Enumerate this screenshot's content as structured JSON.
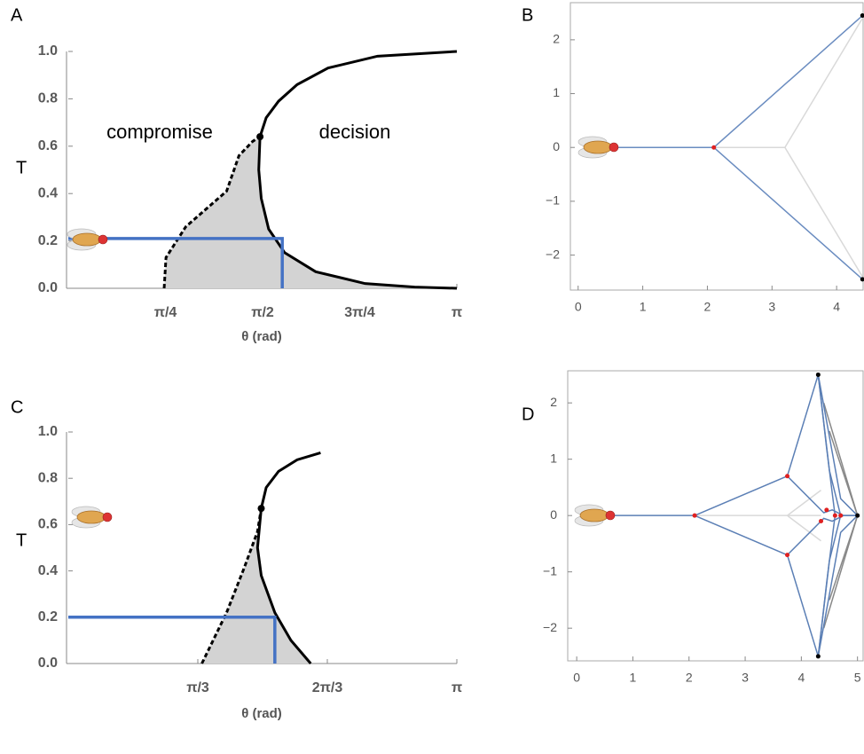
{
  "chart_data": [
    {
      "type": "line",
      "label": "A",
      "xlabel": "θ (rad)",
      "ylabel": "T",
      "annotations": [
        "compromise",
        "decision"
      ],
      "xlim": [
        0,
        3.1416
      ],
      "ylim": [
        0,
        1
      ],
      "frame": false,
      "shade_color": "#d3d3d3",
      "xticks": [
        {
          "value": 0.7854,
          "label": "π/4"
        },
        {
          "value": 1.5708,
          "label": "π/2"
        },
        {
          "value": 2.3562,
          "label": "3π/4"
        },
        {
          "value": 3.1416,
          "label": "π"
        }
      ],
      "yticks": [
        {
          "value": 0,
          "label": "0.0"
        },
        0.2,
        0.4,
        0.6,
        0.8,
        {
          "value": 1,
          "label": "1.0"
        }
      ],
      "series": [
        {
          "color": "#000000",
          "x": [
            1.55,
            1.6,
            1.7,
            1.85,
            2.1,
            2.5,
            3.1416
          ],
          "y": [
            0.64,
            0.72,
            0.79,
            0.86,
            0.93,
            0.98,
            1.0
          ]
        },
        {
          "color": "#000000",
          "x": [
            1.55,
            1.54,
            1.56,
            1.62,
            1.75,
            2.0,
            2.4,
            2.8,
            3.1416
          ],
          "y": [
            0.64,
            0.5,
            0.38,
            0.25,
            0.15,
            0.07,
            0.02,
            0.005,
            0
          ]
        },
        {
          "color": "#000000",
          "dash": true,
          "x": [
            0.775,
            0.79,
            0.95,
            1.28,
            1.38,
            1.49,
            1.55
          ],
          "y": [
            0,
            0.13,
            0.26,
            0.41,
            0.56,
            0.62,
            0.64
          ]
        },
        {
          "color": "#4472c4",
          "x": [
            0,
            1.73,
            1.73
          ],
          "y": [
            0.21,
            0.21,
            0
          ]
        }
      ],
      "points": [
        {
          "color": "#000000",
          "x": [
            1.55
          ],
          "y": [
            0.64
          ]
        }
      ]
    },
    {
      "type": "line",
      "label": "B",
      "xlim": [
        -0.12,
        4.41
      ],
      "ylim": [
        -2.65,
        2.69
      ],
      "frame": true,
      "xticks": [
        0,
        1,
        2,
        3,
        4
      ],
      "yticks": [
        {
          "value": -2,
          "label": "−2"
        },
        {
          "value": -1,
          "label": "−1"
        },
        0,
        1,
        2
      ],
      "series": [
        {
          "color": "#d9d9d9",
          "x": [
            2.1,
            3.2,
            4.4
          ],
          "y": [
            0,
            0,
            2.4
          ]
        },
        {
          "color": "#d9d9d9",
          "x": [
            3.2,
            4.4
          ],
          "y": [
            0,
            -2.4
          ]
        },
        {
          "color": "#6a8cc0",
          "x": [
            0.6,
            2.1,
            4.4
          ],
          "y": [
            0,
            0,
            2.45
          ]
        },
        {
          "color": "#6a8cc0",
          "x": [
            2.1,
            4.4
          ],
          "y": [
            0,
            -2.45
          ]
        }
      ],
      "points": [
        {
          "color": "#e02020",
          "x": [
            2.1
          ],
          "y": [
            0
          ]
        },
        {
          "color": "#000000",
          "x": [
            4.4,
            4.4
          ],
          "y": [
            2.45,
            -2.45
          ]
        }
      ]
    },
    {
      "type": "line",
      "label": "C",
      "xlabel": "θ (rad)",
      "ylabel": "T",
      "xlim": [
        0,
        3.1416
      ],
      "ylim": [
        0,
        1
      ],
      "frame": false,
      "shade_color": "#d3d3d3",
      "xticks": [
        {
          "value": 1.0472,
          "label": "π/3"
        },
        {
          "value": 2.0944,
          "label": "2π/3"
        },
        {
          "value": 3.1416,
          "label": "π"
        }
      ],
      "yticks": [
        {
          "value": 0,
          "label": "0.0"
        },
        0.2,
        0.4,
        0.6,
        0.8,
        {
          "value": 1,
          "label": "1.0"
        }
      ],
      "series": [
        {
          "color": "#000000",
          "x": [
            1.56,
            1.6,
            1.7,
            1.85,
            2.04
          ],
          "y": [
            0.67,
            0.76,
            0.83,
            0.88,
            0.91
          ]
        },
        {
          "color": "#000000",
          "x": [
            1.56,
            1.53,
            1.56,
            1.67,
            1.8,
            1.96
          ],
          "y": [
            0.67,
            0.5,
            0.38,
            0.22,
            0.1,
            0
          ]
        },
        {
          "color": "#000000",
          "dash": true,
          "x": [
            1.08,
            1.28,
            1.42,
            1.53,
            1.56
          ],
          "y": [
            0,
            0.22,
            0.41,
            0.57,
            0.67
          ]
        },
        {
          "color": "#4472c4",
          "x": [
            0,
            1.67,
            1.67
          ],
          "y": [
            0.2,
            0.2,
            0
          ]
        }
      ],
      "points": [
        {
          "color": "#000000",
          "x": [
            1.56
          ],
          "y": [
            0.67
          ]
        }
      ]
    },
    {
      "type": "line",
      "label": "D",
      "xlim": [
        -0.16,
        5.1
      ],
      "ylim": [
        -2.58,
        2.57
      ],
      "frame": true,
      "xticks": [
        0,
        1,
        2,
        3,
        4,
        5
      ],
      "yticks": [
        {
          "value": -2,
          "label": "−2"
        },
        {
          "value": -1,
          "label": "−1"
        },
        0,
        1,
        2
      ],
      "series": [
        {
          "color": "#d9d9d9",
          "x": [
            2.1,
            3.75,
            4.35
          ],
          "y": [
            0,
            0,
            0
          ]
        },
        {
          "color": "#d9d9d9",
          "x": [
            3.75,
            4.35
          ],
          "y": [
            0,
            0.45
          ]
        },
        {
          "color": "#d9d9d9",
          "x": [
            3.75,
            4.35
          ],
          "y": [
            0,
            -0.45
          ]
        },
        {
          "color": "#888888",
          "x": [
            4.4,
            5.0
          ],
          "y": [
            2.0,
            0
          ]
        },
        {
          "color": "#888888",
          "x": [
            4.4,
            5.0
          ],
          "y": [
            -2.0,
            0
          ]
        },
        {
          "color": "#888888",
          "x": [
            4.5,
            5.0
          ],
          "y": [
            1.5,
            0
          ]
        },
        {
          "color": "#888888",
          "x": [
            4.5,
            5.0
          ],
          "y": [
            -1.5,
            0
          ]
        },
        {
          "color": "#5b7fb5",
          "x": [
            0.6,
            2.1
          ],
          "y": [
            0,
            0
          ]
        },
        {
          "color": "#5b7fb5",
          "x": [
            2.1,
            3.75,
            4.3
          ],
          "y": [
            0,
            0.7,
            2.5
          ]
        },
        {
          "color": "#5b7fb5",
          "x": [
            2.1,
            3.75,
            4.3
          ],
          "y": [
            0,
            -0.7,
            -2.5
          ]
        },
        {
          "color": "#5b7fb5",
          "x": [
            3.75,
            4.4,
            4.55,
            4.75,
            5.0
          ],
          "y": [
            0.7,
            0.05,
            0.1,
            0,
            0
          ]
        },
        {
          "color": "#5b7fb5",
          "x": [
            3.75,
            4.4,
            4.55,
            4.75,
            5.0
          ],
          "y": [
            -0.7,
            -0.05,
            -0.1,
            0,
            0
          ]
        },
        {
          "color": "#5b7fb5",
          "x": [
            4.3,
            4.45,
            4.6
          ],
          "y": [
            2.5,
            1.2,
            0
          ]
        },
        {
          "color": "#5b7fb5",
          "x": [
            4.3,
            4.5,
            4.7
          ],
          "y": [
            2.5,
            0.8,
            0
          ]
        },
        {
          "color": "#5b7fb5",
          "x": [
            4.3,
            4.45,
            4.6
          ],
          "y": [
            -2.5,
            -1.2,
            0
          ]
        },
        {
          "color": "#5b7fb5",
          "x": [
            4.3,
            4.5,
            4.7
          ],
          "y": [
            -2.5,
            -0.8,
            0
          ]
        },
        {
          "color": "#5b7fb5",
          "x": [
            4.3,
            4.7,
            5.0
          ],
          "y": [
            2.5,
            0.3,
            0
          ]
        },
        {
          "color": "#5b7fb5",
          "x": [
            4.3,
            4.7,
            5.0
          ],
          "y": [
            -2.5,
            -0.3,
            0
          ]
        }
      ],
      "points": [
        {
          "color": "#e02020",
          "x": [
            2.1,
            3.75,
            3.75,
            4.35,
            4.45,
            4.6,
            4.7
          ],
          "y": [
            0,
            0.7,
            -0.7,
            -0.1,
            0.1,
            0,
            0
          ]
        },
        {
          "color": "#000000",
          "x": [
            4.3,
            4.3,
            5.0
          ],
          "y": [
            2.5,
            -2.5,
            0
          ]
        }
      ]
    }
  ]
}
